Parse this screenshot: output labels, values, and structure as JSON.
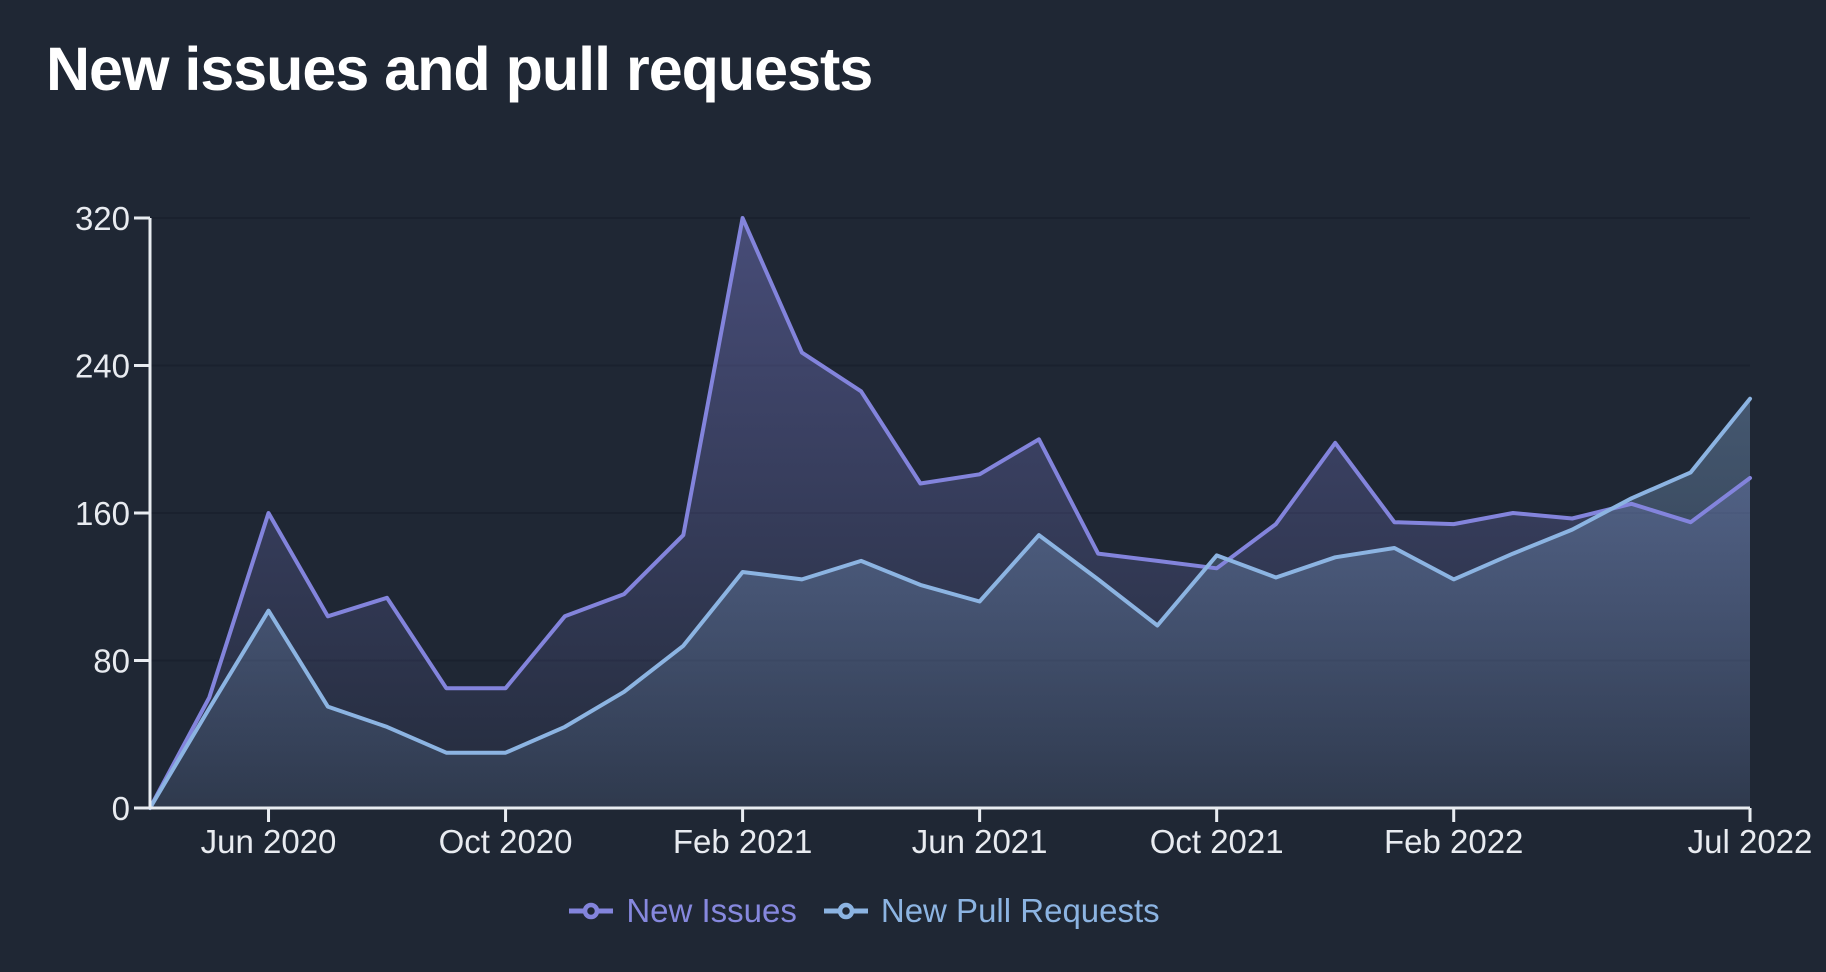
{
  "chart": {
    "title": "New issues and pull requests"
  },
  "chart_data": {
    "type": "area",
    "title": "New issues and pull requests",
    "x": [
      "Apr 2020",
      "May 2020",
      "Jun 2020",
      "Jul 2020",
      "Aug 2020",
      "Sep 2020",
      "Oct 2020",
      "Nov 2020",
      "Dec 2020",
      "Jan 2021",
      "Feb 2021",
      "Mar 2021",
      "Apr 2021",
      "May 2021",
      "Jun 2021",
      "Jul 2021",
      "Aug 2021",
      "Sep 2021",
      "Oct 2021",
      "Nov 2021",
      "Dec 2021",
      "Jan 2022",
      "Feb 2022",
      "Mar 2022",
      "Apr 2022",
      "May 2022",
      "Jun 2022",
      "Jul 2022"
    ],
    "x_tick_indices": [
      2,
      6,
      10,
      14,
      18,
      22,
      27
    ],
    "x_tick_labels": [
      "Jun 2020",
      "Oct 2020",
      "Feb 2021",
      "Jun 2021",
      "Oct 2021",
      "Feb 2022",
      "Jul 2022"
    ],
    "y_ticks": [
      0,
      80,
      160,
      240,
      320
    ],
    "ylim": [
      0,
      320
    ],
    "grid": true,
    "legend_position": "bottom",
    "series": [
      {
        "name": "New Issues",
        "color": "#8384DC",
        "values": [
          0,
          60,
          160,
          104,
          114,
          65,
          65,
          104,
          116,
          148,
          320,
          247,
          226,
          176,
          181,
          200,
          138,
          134,
          130,
          154,
          198,
          155,
          154,
          160,
          157,
          165,
          155,
          179
        ]
      },
      {
        "name": "New Pull Requests",
        "color": "#8CB4E2",
        "values": [
          0,
          54,
          107,
          55,
          44,
          30,
          30,
          44,
          63,
          88,
          128,
          124,
          134,
          121,
          112,
          148,
          124,
          99,
          137,
          125,
          136,
          141,
          124,
          138,
          151,
          168,
          182,
          222
        ]
      }
    ],
    "colors": {
      "background": "#1F2734",
      "axis": "#E8ECF1",
      "gridline": "#1A212E",
      "tick_label": "#E8EBF0"
    }
  }
}
